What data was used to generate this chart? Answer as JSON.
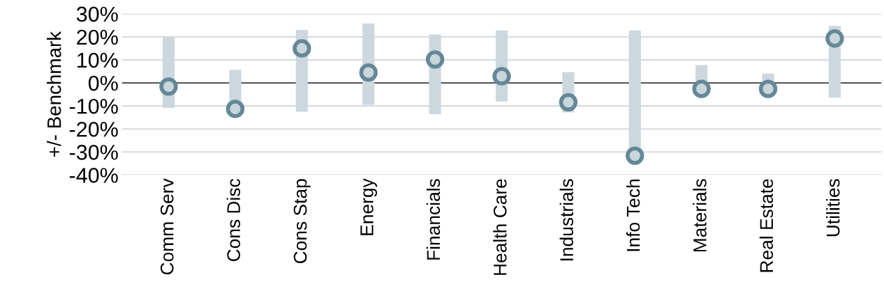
{
  "chart_data": {
    "type": "bar",
    "ylabel": "+/- Benchmark",
    "categories": [
      "Comm Serv",
      "Cons Disc",
      "Cons Stap",
      "Energy",
      "Financials",
      "Health Care",
      "Industrials",
      "Info Tech",
      "Materials",
      "Real Estate",
      "Utilities"
    ],
    "series": [
      {
        "color": "#ccd8de",
        "base": [
          -10.9,
          -11.3,
          -12.5,
          -9.5,
          -13.6,
          -8.1,
          -12.8,
          -31.6,
          -2.6,
          -2.6,
          -6.4
        ],
        "values": [
          30.9,
          17,
          35.5,
          35.3,
          34.6,
          30.9,
          17.4,
          54.4,
          10.3,
          6.6,
          31.1
        ]
      },
      {
        "type": "scatter",
        "color": "#648896",
        "marker": "circle",
        "values": [
          -1.6,
          -11.3,
          15,
          4.5,
          10.2,
          2.9,
          -8.4,
          -31.6,
          -2.6,
          -2.6,
          19.3
        ]
      }
    ],
    "ylim": [
      -40,
      30
    ],
    "yticks": [
      {
        "value": -40,
        "label": "-40%"
      },
      {
        "value": -30,
        "label": "-30%"
      },
      {
        "value": -20,
        "label": "-20%"
      },
      {
        "value": -10,
        "label": "-10%"
      },
      {
        "value": 0,
        "label": "0%"
      },
      {
        "value": 10,
        "label": "10%"
      },
      {
        "value": 20,
        "label": "20%"
      },
      {
        "value": 30,
        "label": "30%"
      }
    ],
    "grid": "y",
    "ref_lines": [
      {
        "axis": "y",
        "value": 0,
        "color": "#000000"
      }
    ]
  }
}
